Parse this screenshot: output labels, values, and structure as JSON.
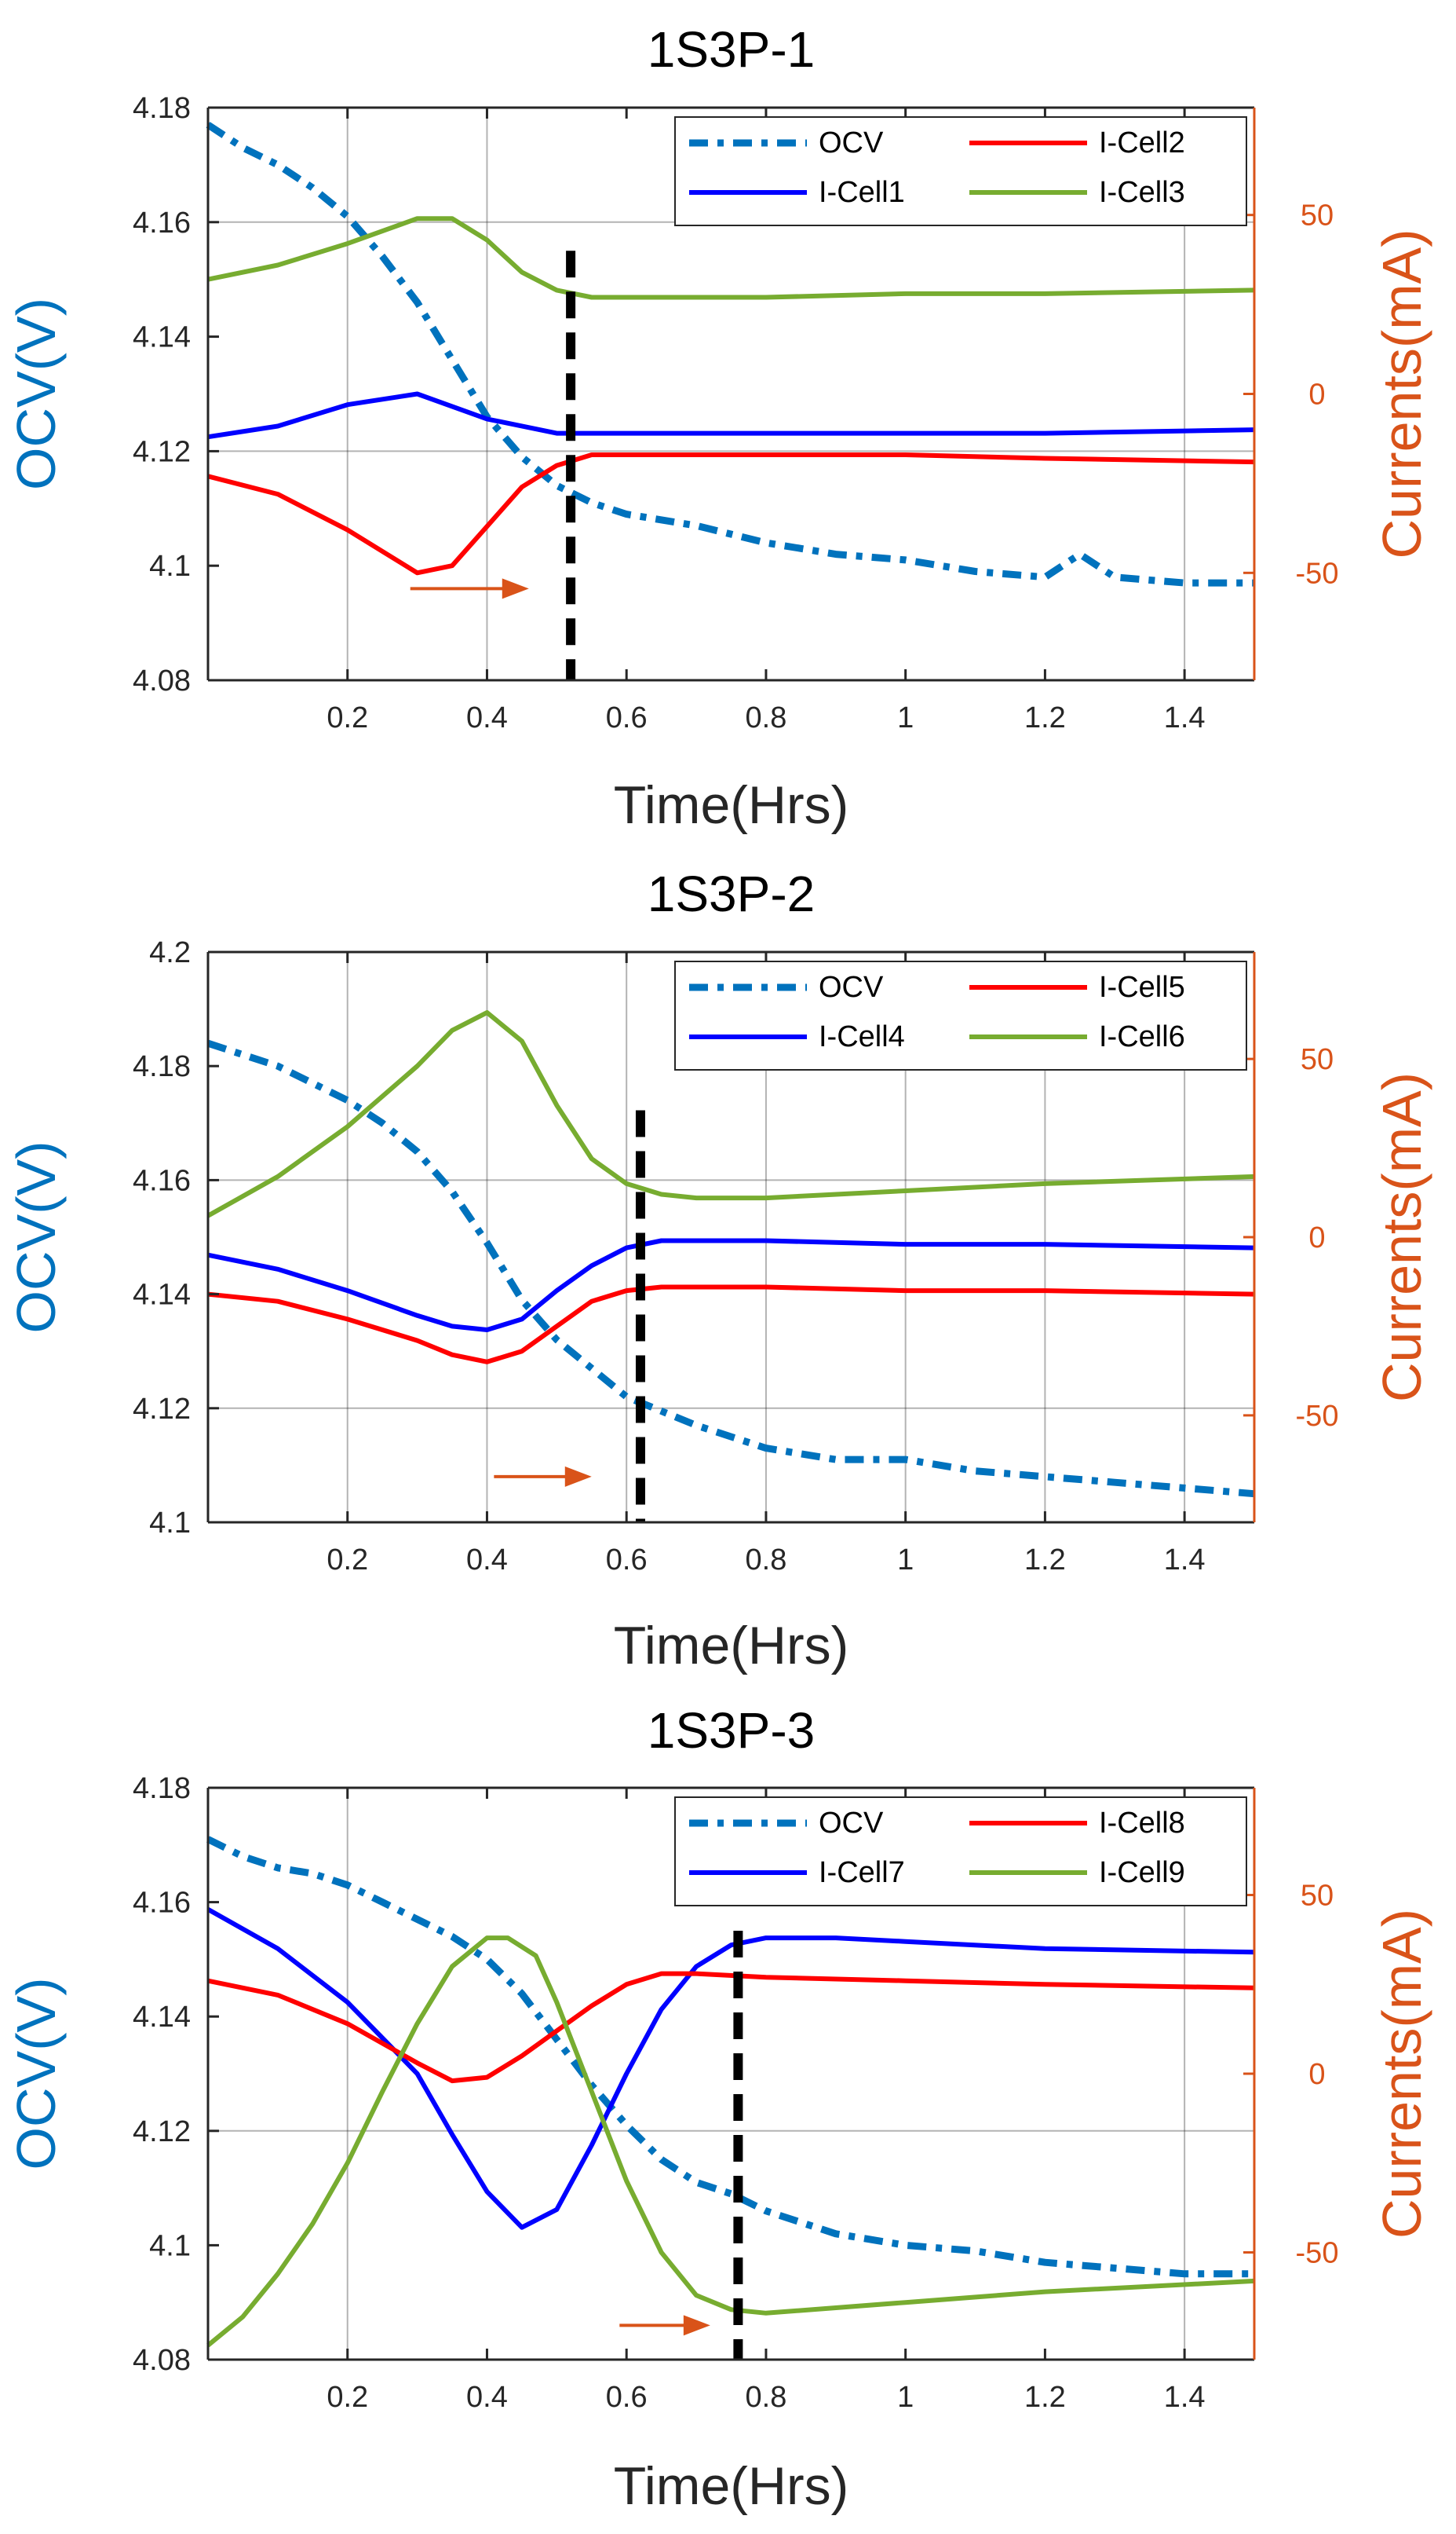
{
  "colors": {
    "ocv": "#0072BD",
    "right_axis": "#D95319",
    "cell_blue": "#0000FF",
    "cell_red": "#FF0000",
    "cell_green": "#77AC30",
    "marker": "#000000",
    "arrow": "#D95319"
  },
  "chart_data": [
    {
      "type": "line",
      "title": "1S3P-1",
      "xlabel": "Time(Hrs)",
      "ylabel_left": "OCV(V)",
      "ylabel_right": "Currents(mA)",
      "xlim": [
        0.0,
        1.5
      ],
      "ylim_left": [
        4.08,
        4.18
      ],
      "ylim_right": [
        -80,
        80
      ],
      "xticks": [
        0.2,
        0.4,
        0.6,
        0.8,
        1,
        1.2,
        1.4
      ],
      "xtick_labels": [
        "0.2",
        "0.4",
        "0.6",
        "0.8",
        "1",
        "1.2",
        "1.4"
      ],
      "yticks_left": [
        4.08,
        4.1,
        4.12,
        4.14,
        4.16,
        4.18
      ],
      "ytick_labels_left": [
        "4.08",
        "4.1",
        "4.12",
        "4.14",
        "4.16",
        "4.18"
      ],
      "yticks_right": [
        -50,
        0,
        50
      ],
      "ytick_labels_right": [
        "-50",
        "0",
        "50"
      ],
      "grid_x": [
        0.2,
        0.4,
        1.4
      ],
      "grid_y": [
        4.12,
        4.16
      ],
      "legend": {
        "position": "top-right",
        "entries": [
          "OCV",
          "I-Cell2",
          "I-Cell1",
          "I-Cell3"
        ]
      },
      "series": [
        {
          "name": "OCV",
          "axis": "left",
          "color_key": "ocv",
          "style": "dashdot",
          "x": [
            0.0,
            0.05,
            0.1,
            0.15,
            0.2,
            0.25,
            0.3,
            0.35,
            0.4,
            0.45,
            0.5,
            0.55,
            0.6,
            0.7,
            0.8,
            0.9,
            1.0,
            1.1,
            1.2,
            1.25,
            1.3,
            1.4,
            1.5
          ],
          "y": [
            4.177,
            4.173,
            4.17,
            4.166,
            4.161,
            4.154,
            4.146,
            4.136,
            4.126,
            4.119,
            4.114,
            4.111,
            4.109,
            4.107,
            4.104,
            4.102,
            4.101,
            4.099,
            4.098,
            4.102,
            4.098,
            4.097,
            4.097
          ]
        },
        {
          "name": "I-Cell1",
          "axis": "right",
          "color_key": "cell_blue",
          "style": "solid",
          "x": [
            0.0,
            0.1,
            0.2,
            0.3,
            0.4,
            0.5,
            0.6,
            0.8,
            1.0,
            1.2,
            1.5
          ],
          "y": [
            -12,
            -9,
            -3,
            0,
            -7,
            -11,
            -11,
            -11,
            -11,
            -11,
            -10
          ]
        },
        {
          "name": "I-Cell2",
          "axis": "right",
          "color_key": "cell_red",
          "style": "solid",
          "x": [
            0.0,
            0.1,
            0.2,
            0.3,
            0.35,
            0.4,
            0.45,
            0.5,
            0.55,
            0.6,
            0.8,
            1.0,
            1.2,
            1.5
          ],
          "y": [
            -23,
            -28,
            -38,
            -50,
            -48,
            -37,
            -26,
            -20,
            -17,
            -17,
            -17,
            -17,
            -18,
            -19
          ]
        },
        {
          "name": "I-Cell3",
          "axis": "right",
          "color_key": "cell_green",
          "style": "solid",
          "x": [
            0.0,
            0.1,
            0.2,
            0.3,
            0.35,
            0.4,
            0.45,
            0.5,
            0.55,
            0.6,
            0.8,
            1.0,
            1.2,
            1.5
          ],
          "y": [
            32,
            36,
            42,
            49,
            49,
            43,
            34,
            29,
            27,
            27,
            27,
            28,
            28,
            29
          ]
        }
      ],
      "vline_x": 0.52,
      "arrow": {
        "x_start": 0.29,
        "x_end": 0.46,
        "y": 4.096
      }
    },
    {
      "type": "line",
      "title": "1S3P-2",
      "xlabel": "Time(Hrs)",
      "ylabel_left": "OCV(V)",
      "ylabel_right": "Currents(mA)",
      "xlim": [
        0.0,
        1.5
      ],
      "ylim_left": [
        4.1,
        4.2
      ],
      "ylim_right": [
        -80,
        80
      ],
      "xticks": [
        0.2,
        0.4,
        0.6,
        0.8,
        1,
        1.2,
        1.4
      ],
      "xtick_labels": [
        "0.2",
        "0.4",
        "0.6",
        "0.8",
        "1",
        "1.2",
        "1.4"
      ],
      "yticks_left": [
        4.1,
        4.12,
        4.14,
        4.16,
        4.18,
        4.2
      ],
      "ytick_labels_left": [
        "4.1",
        "4.12",
        "4.14",
        "4.16",
        "4.18",
        "4.2"
      ],
      "yticks_right": [
        -50,
        0,
        50
      ],
      "ytick_labels_right": [
        "-50",
        "0",
        "50"
      ],
      "grid_x": [
        0.2,
        0.4,
        0.6,
        0.8,
        1.0,
        1.2,
        1.4
      ],
      "grid_y": [
        4.12,
        4.16
      ],
      "legend": {
        "position": "top-right",
        "entries": [
          "OCV",
          "I-Cell5",
          "I-Cell4",
          "I-Cell6"
        ]
      },
      "series": [
        {
          "name": "OCV",
          "axis": "left",
          "color_key": "ocv",
          "style": "dashdot",
          "x": [
            0.0,
            0.05,
            0.1,
            0.15,
            0.2,
            0.25,
            0.3,
            0.35,
            0.4,
            0.45,
            0.5,
            0.55,
            0.6,
            0.7,
            0.8,
            0.9,
            1.0,
            1.1,
            1.2,
            1.3,
            1.4,
            1.5
          ],
          "y": [
            4.184,
            4.182,
            4.18,
            4.177,
            4.174,
            4.17,
            4.165,
            4.158,
            4.149,
            4.139,
            4.132,
            4.127,
            4.122,
            4.117,
            4.113,
            4.111,
            4.111,
            4.109,
            4.108,
            4.107,
            4.106,
            4.105
          ]
        },
        {
          "name": "I-Cell4",
          "axis": "right",
          "color_key": "cell_blue",
          "style": "solid",
          "x": [
            0.0,
            0.1,
            0.2,
            0.3,
            0.35,
            0.4,
            0.45,
            0.5,
            0.55,
            0.6,
            0.65,
            0.8,
            1.0,
            1.2,
            1.5
          ],
          "y": [
            -5,
            -9,
            -15,
            -22,
            -25,
            -26,
            -23,
            -15,
            -8,
            -3,
            -1,
            -1,
            -2,
            -2,
            -3
          ]
        },
        {
          "name": "I-Cell5",
          "axis": "right",
          "color_key": "cell_red",
          "style": "solid",
          "x": [
            0.0,
            0.1,
            0.2,
            0.3,
            0.35,
            0.4,
            0.45,
            0.5,
            0.55,
            0.6,
            0.65,
            0.8,
            1.0,
            1.2,
            1.5
          ],
          "y": [
            -16,
            -18,
            -23,
            -29,
            -33,
            -35,
            -32,
            -25,
            -18,
            -15,
            -14,
            -14,
            -15,
            -15,
            -16
          ]
        },
        {
          "name": "I-Cell6",
          "axis": "right",
          "color_key": "cell_green",
          "style": "solid",
          "x": [
            0.0,
            0.1,
            0.2,
            0.3,
            0.35,
            0.4,
            0.45,
            0.5,
            0.55,
            0.6,
            0.65,
            0.7,
            0.8,
            1.0,
            1.2,
            1.5
          ],
          "y": [
            6,
            17,
            31,
            48,
            58,
            63,
            55,
            37,
            22,
            15,
            12,
            11,
            11,
            13,
            15,
            17
          ]
        }
      ],
      "vline_x": 0.62,
      "arrow": {
        "x_start": 0.41,
        "x_end": 0.55,
        "y": 4.108
      }
    },
    {
      "type": "line",
      "title": "1S3P-3",
      "xlabel": "Time(Hrs)",
      "ylabel_left": "OCV(V)",
      "ylabel_right": "Currents(mA)",
      "xlim": [
        0.0,
        1.5
      ],
      "ylim_left": [
        4.08,
        4.18
      ],
      "ylim_right": [
        -80,
        80
      ],
      "xticks": [
        0.2,
        0.4,
        0.6,
        0.8,
        1,
        1.2,
        1.4
      ],
      "xtick_labels": [
        "0.2",
        "0.4",
        "0.6",
        "0.8",
        "1",
        "1.2",
        "1.4"
      ],
      "yticks_left": [
        4.08,
        4.1,
        4.12,
        4.14,
        4.16,
        4.18
      ],
      "ytick_labels_left": [
        "4.08",
        "4.1",
        "4.12",
        "4.14",
        "4.16",
        "4.18"
      ],
      "yticks_right": [
        -50,
        0,
        50
      ],
      "ytick_labels_right": [
        "-50",
        "0",
        "50"
      ],
      "grid_x": [
        0.2,
        1.4
      ],
      "grid_y": [
        4.12
      ],
      "legend": {
        "position": "top-right",
        "entries": [
          "OCV",
          "I-Cell8",
          "I-Cell7",
          "I-Cell9"
        ]
      },
      "series": [
        {
          "name": "OCV",
          "axis": "left",
          "color_key": "ocv",
          "style": "dashdot",
          "x": [
            0.0,
            0.05,
            0.1,
            0.15,
            0.2,
            0.25,
            0.3,
            0.35,
            0.4,
            0.45,
            0.5,
            0.55,
            0.6,
            0.65,
            0.7,
            0.75,
            0.8,
            0.9,
            1.0,
            1.1,
            1.2,
            1.3,
            1.4,
            1.5
          ],
          "y": [
            4.171,
            4.168,
            4.166,
            4.165,
            4.163,
            4.16,
            4.157,
            4.154,
            4.15,
            4.144,
            4.136,
            4.128,
            4.121,
            4.115,
            4.111,
            4.109,
            4.106,
            4.102,
            4.1,
            4.099,
            4.097,
            4.096,
            4.095,
            4.095
          ]
        },
        {
          "name": "I-Cell7",
          "axis": "right",
          "color_key": "cell_blue",
          "style": "solid",
          "x": [
            0.0,
            0.1,
            0.2,
            0.25,
            0.3,
            0.35,
            0.4,
            0.45,
            0.5,
            0.55,
            0.6,
            0.65,
            0.7,
            0.75,
            0.8,
            0.9,
            1.0,
            1.2,
            1.5
          ],
          "y": [
            46,
            35,
            20,
            10,
            0,
            -17,
            -33,
            -43,
            -38,
            -20,
            0,
            18,
            30,
            36,
            38,
            38,
            37,
            35,
            34
          ]
        },
        {
          "name": "I-Cell8",
          "axis": "right",
          "color_key": "cell_red",
          "style": "solid",
          "x": [
            0.0,
            0.1,
            0.2,
            0.3,
            0.35,
            0.4,
            0.45,
            0.5,
            0.55,
            0.6,
            0.65,
            0.7,
            0.8,
            1.0,
            1.2,
            1.5
          ],
          "y": [
            26,
            22,
            14,
            3,
            -2,
            -1,
            5,
            12,
            19,
            25,
            28,
            28,
            27,
            26,
            25,
            24
          ]
        },
        {
          "name": "I-Cell9",
          "axis": "right",
          "color_key": "cell_green",
          "style": "solid",
          "x": [
            0.0,
            0.05,
            0.1,
            0.15,
            0.2,
            0.25,
            0.3,
            0.35,
            0.4,
            0.43,
            0.47,
            0.5,
            0.55,
            0.6,
            0.65,
            0.7,
            0.75,
            0.8,
            1.0,
            1.2,
            1.5
          ],
          "y": [
            -76,
            -68,
            -56,
            -42,
            -25,
            -5,
            14,
            30,
            38,
            38,
            33,
            20,
            -5,
            -30,
            -50,
            -62,
            -66,
            -67,
            -64,
            -61,
            -58
          ]
        }
      ],
      "vline_x": 0.76,
      "arrow": {
        "x_start": 0.59,
        "x_end": 0.72,
        "y": 4.086
      }
    }
  ]
}
